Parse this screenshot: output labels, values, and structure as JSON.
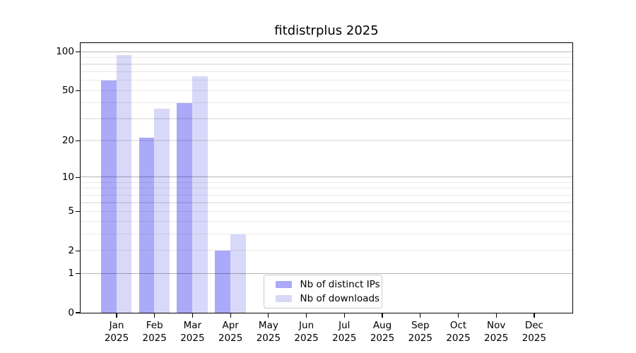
{
  "chart_data": {
    "type": "bar",
    "title": "fitdistrplus 2025",
    "month_labels": [
      "Jan",
      "Feb",
      "Mar",
      "Apr",
      "May",
      "Jun",
      "Jul",
      "Aug",
      "Sep",
      "Oct",
      "Nov",
      "Dec"
    ],
    "year_label": "2025",
    "categories": [
      "Jan 2025",
      "Feb 2025",
      "Mar 2025",
      "Apr 2025",
      "May 2025",
      "Jun 2025",
      "Jul 2025",
      "Aug 2025",
      "Sep 2025",
      "Oct 2025",
      "Nov 2025",
      "Dec 2025"
    ],
    "series": [
      {
        "name": "Nb of distinct IPs",
        "color": "#aaaaf9",
        "values": [
          60,
          21,
          40,
          2,
          null,
          null,
          null,
          null,
          null,
          null,
          null,
          null
        ]
      },
      {
        "name": "Nb of downloads",
        "color": "#d8d8f9",
        "values": [
          95,
          36,
          65,
          3,
          null,
          null,
          null,
          null,
          null,
          null,
          null,
          null
        ]
      }
    ],
    "yscale": "log1p",
    "ylim": [
      0,
      118
    ],
    "yticks": [
      0,
      1,
      2,
      5,
      10,
      20,
      50,
      100
    ],
    "ytick_labels": [
      "0",
      "1",
      "2",
      "5",
      "10",
      "20",
      "50",
      "100"
    ],
    "minor_gridlines": [
      2,
      3,
      4,
      5,
      6,
      7,
      8,
      9,
      20,
      30,
      40,
      50,
      60,
      70,
      80,
      90
    ],
    "major_gridlines": [
      1,
      10,
      100
    ],
    "grid": true,
    "legend_position": "lower-center-inside"
  }
}
